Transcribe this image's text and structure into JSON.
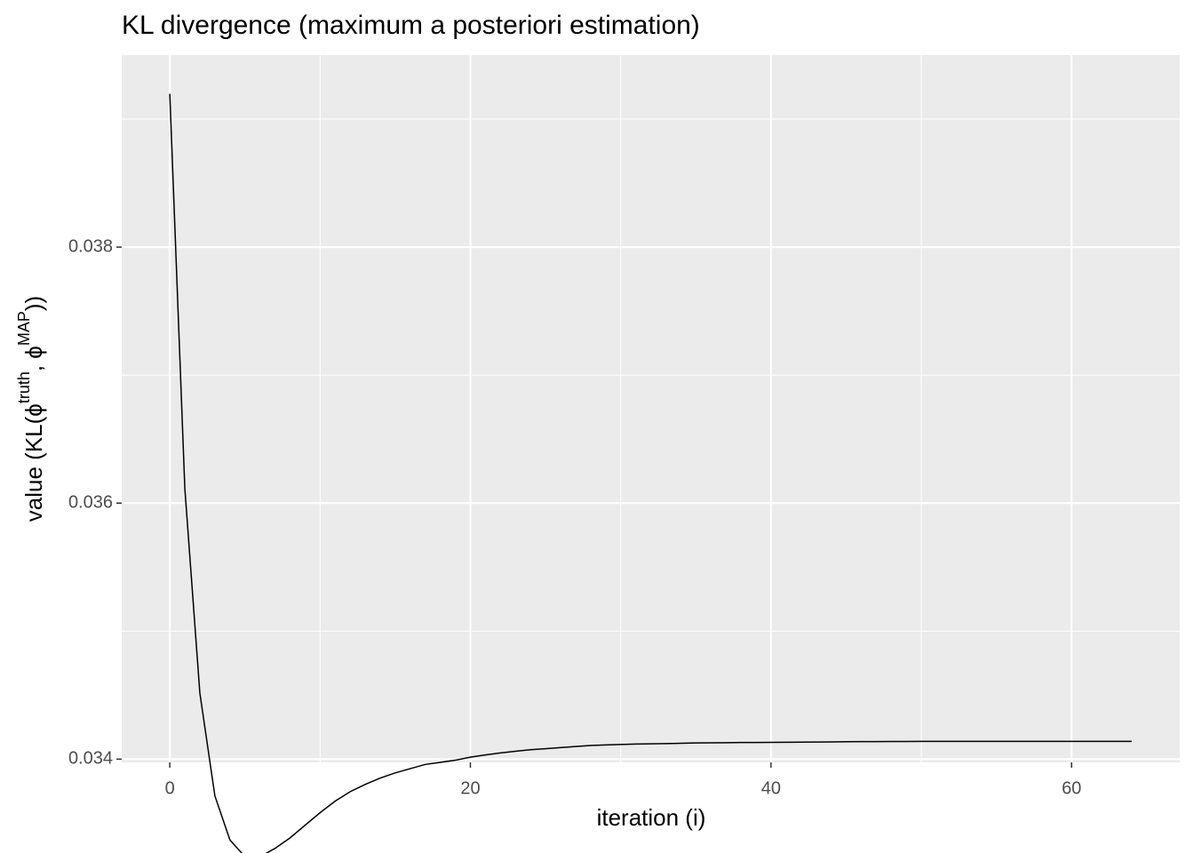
{
  "chart_data": {
    "type": "line",
    "title": "KL divergence (maximum a posteriori estimation)",
    "x_label": "iteration (i)",
    "y_label": {
      "prefix": "value (KL(ϕ",
      "sup1": "truth",
      "mid": ", ϕ",
      "sup2": "MAP",
      "suffix": "))"
    },
    "x": [
      0,
      1,
      2,
      3,
      4,
      5,
      6,
      7,
      8,
      9,
      10,
      11,
      12,
      13,
      14,
      15,
      16,
      17,
      18,
      19,
      20,
      21,
      22,
      23,
      24,
      25,
      26,
      27,
      28,
      29,
      30,
      31,
      32,
      33,
      34,
      35,
      36,
      37,
      38,
      39,
      40,
      41,
      42,
      43,
      44,
      45,
      46,
      47,
      48,
      49,
      50,
      51,
      52,
      53,
      54,
      55,
      56,
      57,
      58,
      59,
      60,
      61,
      62,
      63,
      64
    ],
    "series": [
      {
        "name": "KL",
        "color": "#000000",
        "values": [
          0.039197,
          0.036115,
          0.034516,
          0.033713,
          0.033369,
          0.033238,
          0.033238,
          0.033303,
          0.033385,
          0.033484,
          0.033582,
          0.033672,
          0.033746,
          0.033803,
          0.033852,
          0.033893,
          0.033926,
          0.033959,
          0.033975,
          0.033992,
          0.034016,
          0.034033,
          0.034049,
          0.034062,
          0.034074,
          0.034082,
          0.03409,
          0.034099,
          0.034107,
          0.034111,
          0.034115,
          0.034118,
          0.03412,
          0.034122,
          0.034124,
          0.034127,
          0.034128,
          0.034129,
          0.03413,
          0.03413,
          0.034131,
          0.034132,
          0.034133,
          0.034134,
          0.034135,
          0.034136,
          0.034137,
          0.034137,
          0.034138,
          0.034138,
          0.034139,
          0.034139,
          0.034139,
          0.034139,
          0.034139,
          0.034139,
          0.034139,
          0.034139,
          0.034139,
          0.034139,
          0.034139,
          0.034139,
          0.034139,
          0.034139,
          0.034139
        ]
      }
    ],
    "xlim": [
      -3.2,
      67.2
    ],
    "xticks": [
      0,
      20,
      40,
      60
    ],
    "x_minor_ticks": [
      10,
      30,
      50
    ],
    "ylim": [
      0.033975,
      0.0395
    ],
    "yticks": [
      0.034,
      0.036,
      0.038
    ],
    "y_minor_ticks": [
      0.035,
      0.037,
      0.039
    ],
    "grid": true,
    "panel_color": "#ebebeb"
  }
}
